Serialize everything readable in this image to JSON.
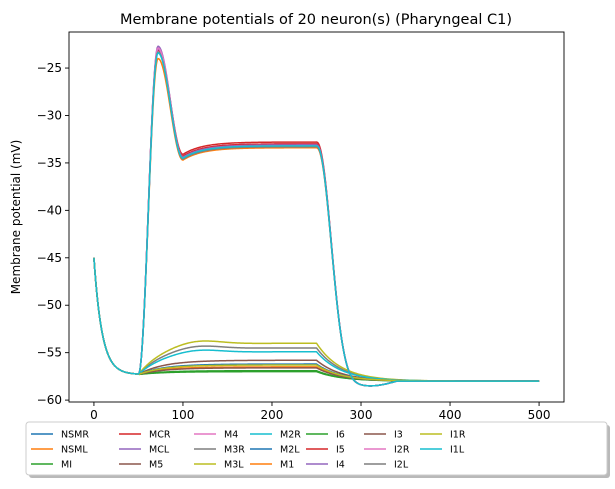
{
  "chart_data": {
    "type": "line",
    "title": "Membrane potentials of 20 neuron(s) (Pharyngeal C1)",
    "xlabel": "",
    "ylabel": "Membrane potential (mV)",
    "xlim": [
      -28,
      528
    ],
    "ylim": [
      -60.2,
      -21.2
    ],
    "x_ticks": [
      0,
      100,
      200,
      300,
      400,
      500
    ],
    "y_ticks": [
      -60,
      -55,
      -50,
      -45,
      -40,
      -35,
      -30,
      -25
    ],
    "x_tick_labels": [
      "0",
      "100",
      "200",
      "300",
      "400",
      "500"
    ],
    "y_tick_labels": [
      "−60",
      "−55",
      "−50",
      "−45",
      "−40",
      "−35",
      "−30",
      "−25"
    ],
    "legend_position": "below",
    "legend_columns": 8,
    "series": [
      {
        "name": "NSMR",
        "color": "#1f77b4",
        "peak": -23.0,
        "plateau": -33.1
      },
      {
        "name": "NSML",
        "color": "#ff7f0e",
        "peak": -24.0,
        "plateau": -33.4
      },
      {
        "name": "MI",
        "color": "#2ca02c",
        "plateau": -57.0
      },
      {
        "name": "MCR",
        "color": "#d62728",
        "peak": -23.0,
        "plateau": -32.8
      },
      {
        "name": "MCL",
        "color": "#9467bd",
        "peak": -22.7,
        "plateau": -33.0
      },
      {
        "name": "M5",
        "color": "#8c564b",
        "plateau": -55.8
      },
      {
        "name": "M4",
        "color": "#e377c2",
        "peak": -22.9,
        "plateau": -33.0
      },
      {
        "name": "M3R",
        "color": "#7f7f7f",
        "plateau": -54.5
      },
      {
        "name": "M3L",
        "color": "#bcbd22",
        "plateau": -54.0
      },
      {
        "name": "M2R",
        "color": "#17becf",
        "plateau": -54.9
      },
      {
        "name": "M2L",
        "color": "#1f77b4",
        "plateau": -56.2
      },
      {
        "name": "M1",
        "color": "#ff7f0e",
        "plateau": -56.5
      },
      {
        "name": "I6",
        "color": "#2ca02c",
        "plateau": -56.9
      },
      {
        "name": "I5",
        "color": "#d62728",
        "peak": -23.1,
        "plateau": -33.0
      },
      {
        "name": "I4",
        "color": "#9467bd",
        "peak": -23.0,
        "plateau": -33.1
      },
      {
        "name": "I3",
        "color": "#8c564b",
        "plateau": -56.6
      },
      {
        "name": "I2R",
        "color": "#e377c2",
        "peak": -22.9,
        "plateau": -33.2
      },
      {
        "name": "I2L",
        "color": "#7f7f7f",
        "peak": -23.3,
        "plateau": -33.3
      },
      {
        "name": "I1R",
        "color": "#bcbd22",
        "plateau": -56.3
      },
      {
        "name": "I1L",
        "color": "#17becf",
        "peak": -23.4,
        "plateau": -33.2
      }
    ]
  }
}
